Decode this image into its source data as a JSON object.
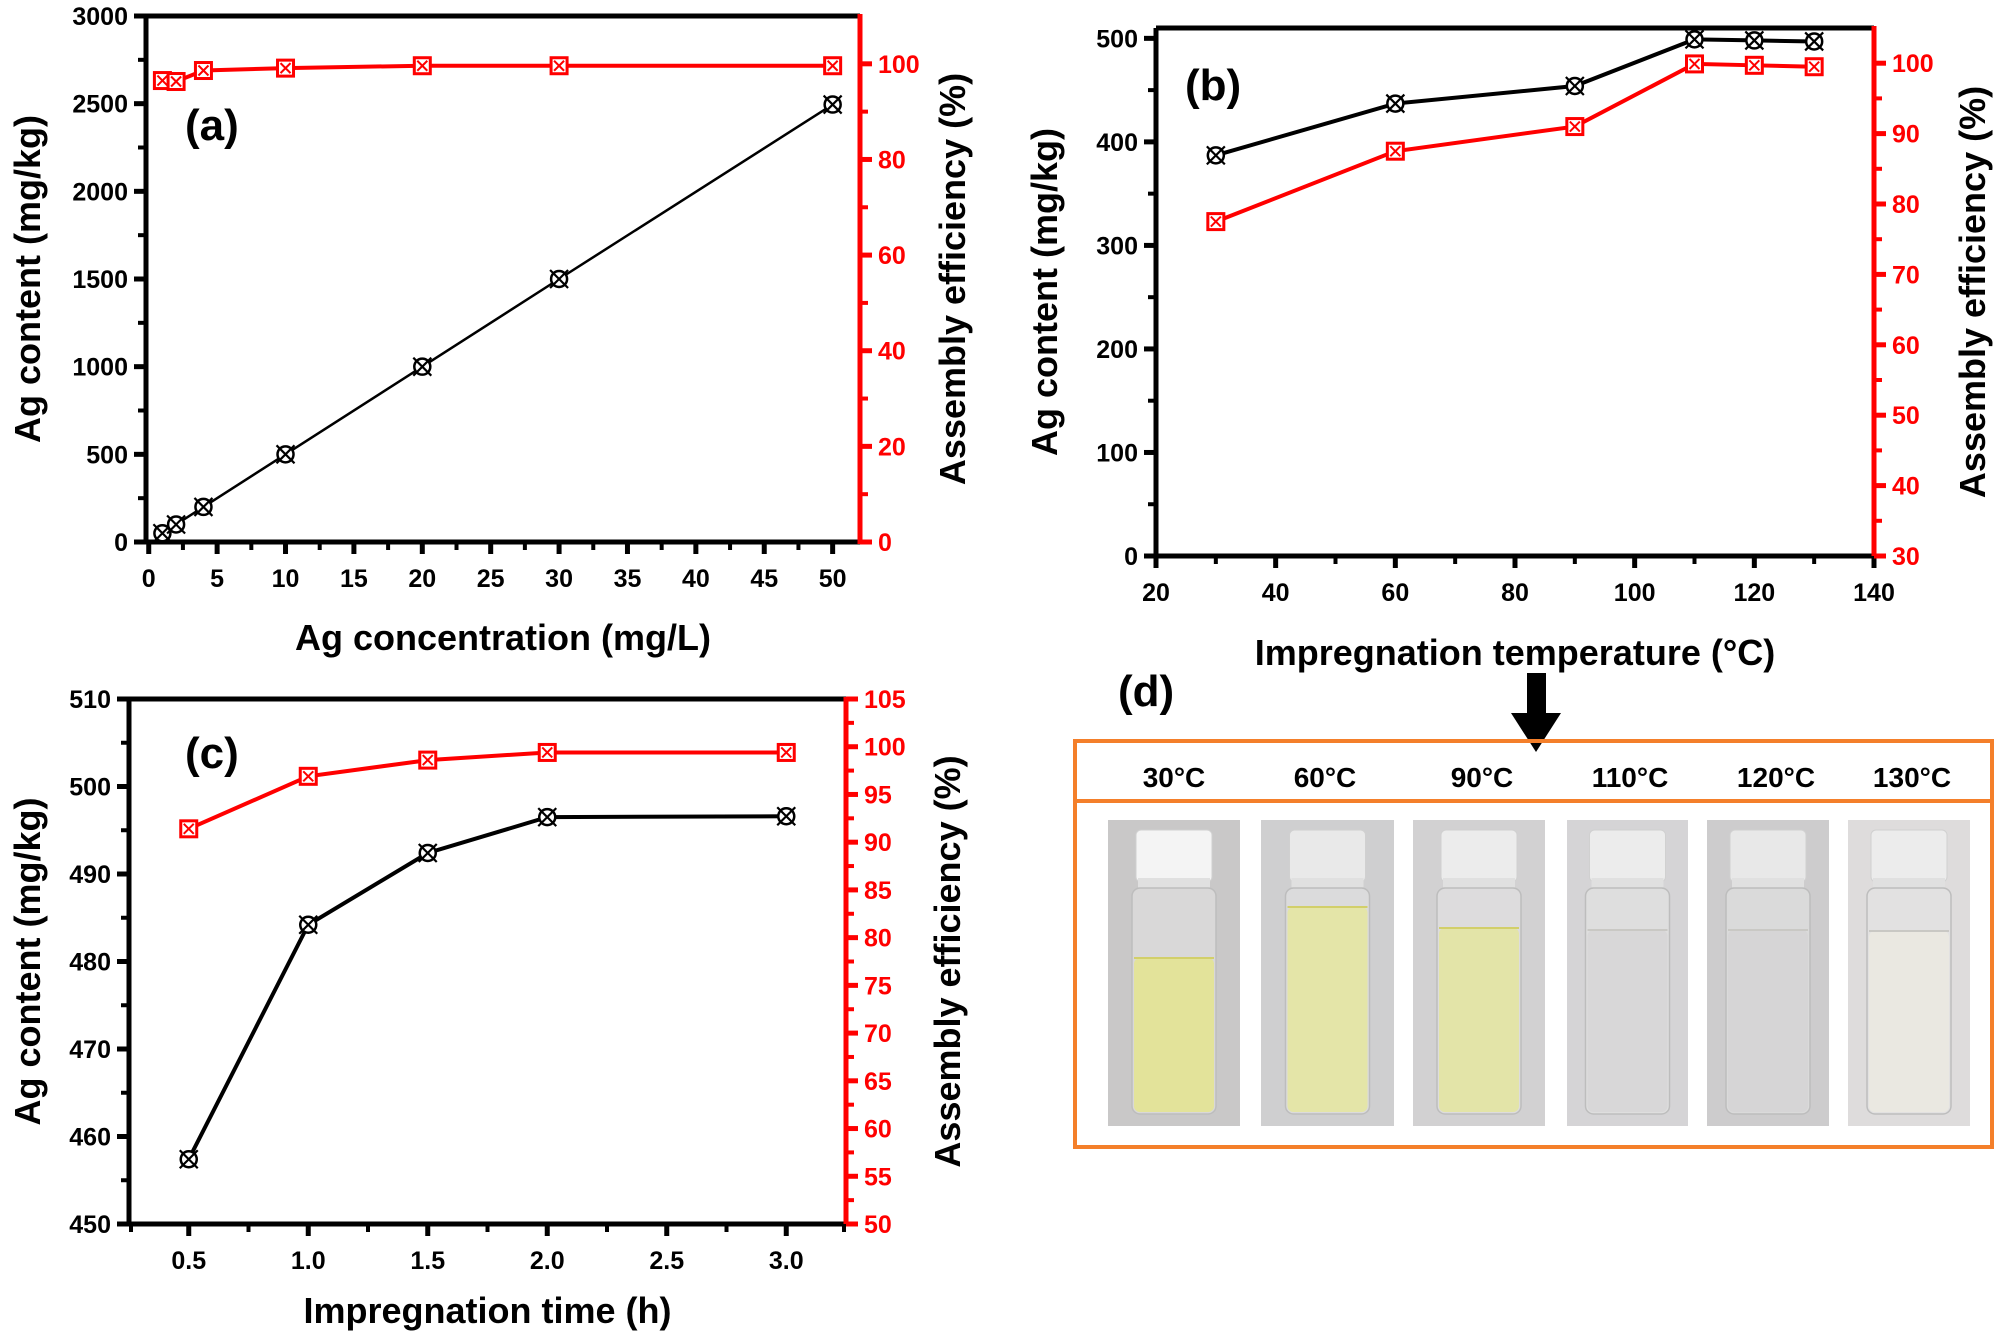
{
  "figure": {
    "panel_d": {
      "label": "(d)",
      "arrow": "down-arrow",
      "vials": [
        {
          "label": "30°C",
          "solution_color": "#e3e39a",
          "cap_color": "#f4f4f4",
          "bg_color": "#c9c8c8"
        },
        {
          "label": "60°C",
          "solution_color": "#e4e5a8",
          "cap_color": "#e9e9e9",
          "bg_color": "#cfcfd0"
        },
        {
          "label": "90°C",
          "solution_color": "#e3e4a8",
          "cap_color": "#ececec",
          "bg_color": "#d2d1d2"
        },
        {
          "label": "110°C",
          "solution_color": "#d8d7d8",
          "cap_color": "#ececec",
          "bg_color": "#d5d4d6"
        },
        {
          "label": "120°C",
          "solution_color": "#d6d5d6",
          "cap_color": "#e8e8e8",
          "bg_color": "#cdcccd"
        },
        {
          "label": "130°C",
          "solution_color": "#eae8e1",
          "cap_color": "#ececec",
          "bg_color": "#dedcdc"
        }
      ],
      "border_color": "#f47f2a"
    }
  },
  "colors": {
    "content_series": "#000000",
    "efficiency_series": "#ff0000",
    "frame": "#f47f2a"
  },
  "chart_data": [
    {
      "id": "a",
      "type": "line",
      "panel_label": "(a)",
      "title": "",
      "xlabel": "Ag concentration (mg/L)",
      "ylabel": "Ag content (mg/kg)",
      "y2label": "Assembly efficiency (%)",
      "xlim": [
        -0.2,
        52
      ],
      "ylim": [
        0,
        3000
      ],
      "y2lim": [
        0,
        110
      ],
      "xticks": [
        0,
        5,
        10,
        15,
        20,
        25,
        30,
        35,
        40,
        45,
        50
      ],
      "yticks": [
        0,
        500,
        1000,
        1500,
        2000,
        2500,
        3000
      ],
      "y2ticks": [
        0,
        20,
        40,
        60,
        80,
        100
      ],
      "grid": false,
      "series": [
        {
          "name": "Ag content",
          "axis": "left",
          "color": "#000000",
          "marker": "circle-x",
          "x": [
            1,
            2,
            4,
            10,
            20,
            30,
            50
          ],
          "values": [
            50,
            100,
            200,
            500,
            1000,
            1500,
            2495
          ]
        },
        {
          "name": "Assembly efficiency",
          "axis": "right",
          "color": "#ff0000",
          "marker": "square-x",
          "x": [
            1,
            2,
            4,
            10,
            20,
            30,
            50
          ],
          "values": [
            96.5,
            96.3,
            98.6,
            99.1,
            99.6,
            99.6,
            99.6
          ]
        }
      ]
    },
    {
      "id": "b",
      "type": "line",
      "panel_label": "(b)",
      "title": "",
      "xlabel": "Impregnation temperature (°C)",
      "ylabel": "Ag content (mg/kg)",
      "y2label": "Assembly efficiency (%)",
      "xlim": [
        20,
        140
      ],
      "ylim": [
        0,
        510
      ],
      "y2lim": [
        30,
        105
      ],
      "xticks": [
        20,
        40,
        60,
        80,
        100,
        120,
        140
      ],
      "yticks": [
        0,
        100,
        200,
        300,
        400,
        500
      ],
      "y2ticks": [
        30,
        40,
        50,
        60,
        70,
        80,
        90,
        100
      ],
      "grid": false,
      "series": [
        {
          "name": "Ag content",
          "axis": "left",
          "color": "#000000",
          "marker": "circle-x",
          "x": [
            30,
            60,
            90,
            110,
            120,
            130
          ],
          "values": [
            387,
            437,
            454,
            499,
            498,
            497
          ]
        },
        {
          "name": "Assembly efficiency",
          "axis": "right",
          "color": "#ff0000",
          "marker": "square-x",
          "x": [
            30,
            60,
            90,
            110,
            120,
            130
          ],
          "values": [
            77.5,
            87.5,
            91.0,
            99.9,
            99.7,
            99.5
          ]
        }
      ]
    },
    {
      "id": "c",
      "type": "line",
      "panel_label": "(c)",
      "title": "",
      "xlabel": "Impregnation time (h)",
      "ylabel": "Ag content (mg/kg)",
      "y2label": "Assembly efficiency (%)",
      "xlim": [
        0.25,
        3.25
      ],
      "ylim": [
        450,
        510
      ],
      "y2lim": [
        50,
        105
      ],
      "xticks": [
        "0.5",
        "1.0",
        "1.5",
        "2.0",
        "2.5",
        "3.0"
      ],
      "yticks": [
        450,
        460,
        470,
        480,
        490,
        500,
        510
      ],
      "y2ticks": [
        50,
        55,
        60,
        65,
        70,
        75,
        80,
        85,
        90,
        95,
        100,
        105
      ],
      "grid": false,
      "series": [
        {
          "name": "Ag content",
          "axis": "left",
          "color": "#000000",
          "marker": "circle-x",
          "x": [
            0.5,
            1.0,
            1.5,
            2.0,
            3.0
          ],
          "values": [
            457.4,
            484.2,
            492.4,
            496.5,
            496.6
          ]
        },
        {
          "name": "Assembly efficiency",
          "axis": "right",
          "color": "#ff0000",
          "marker": "square-x",
          "x": [
            0.5,
            1.0,
            1.5,
            2.0,
            3.0
          ],
          "values": [
            91.4,
            96.9,
            98.6,
            99.4,
            99.4
          ]
        }
      ]
    }
  ]
}
